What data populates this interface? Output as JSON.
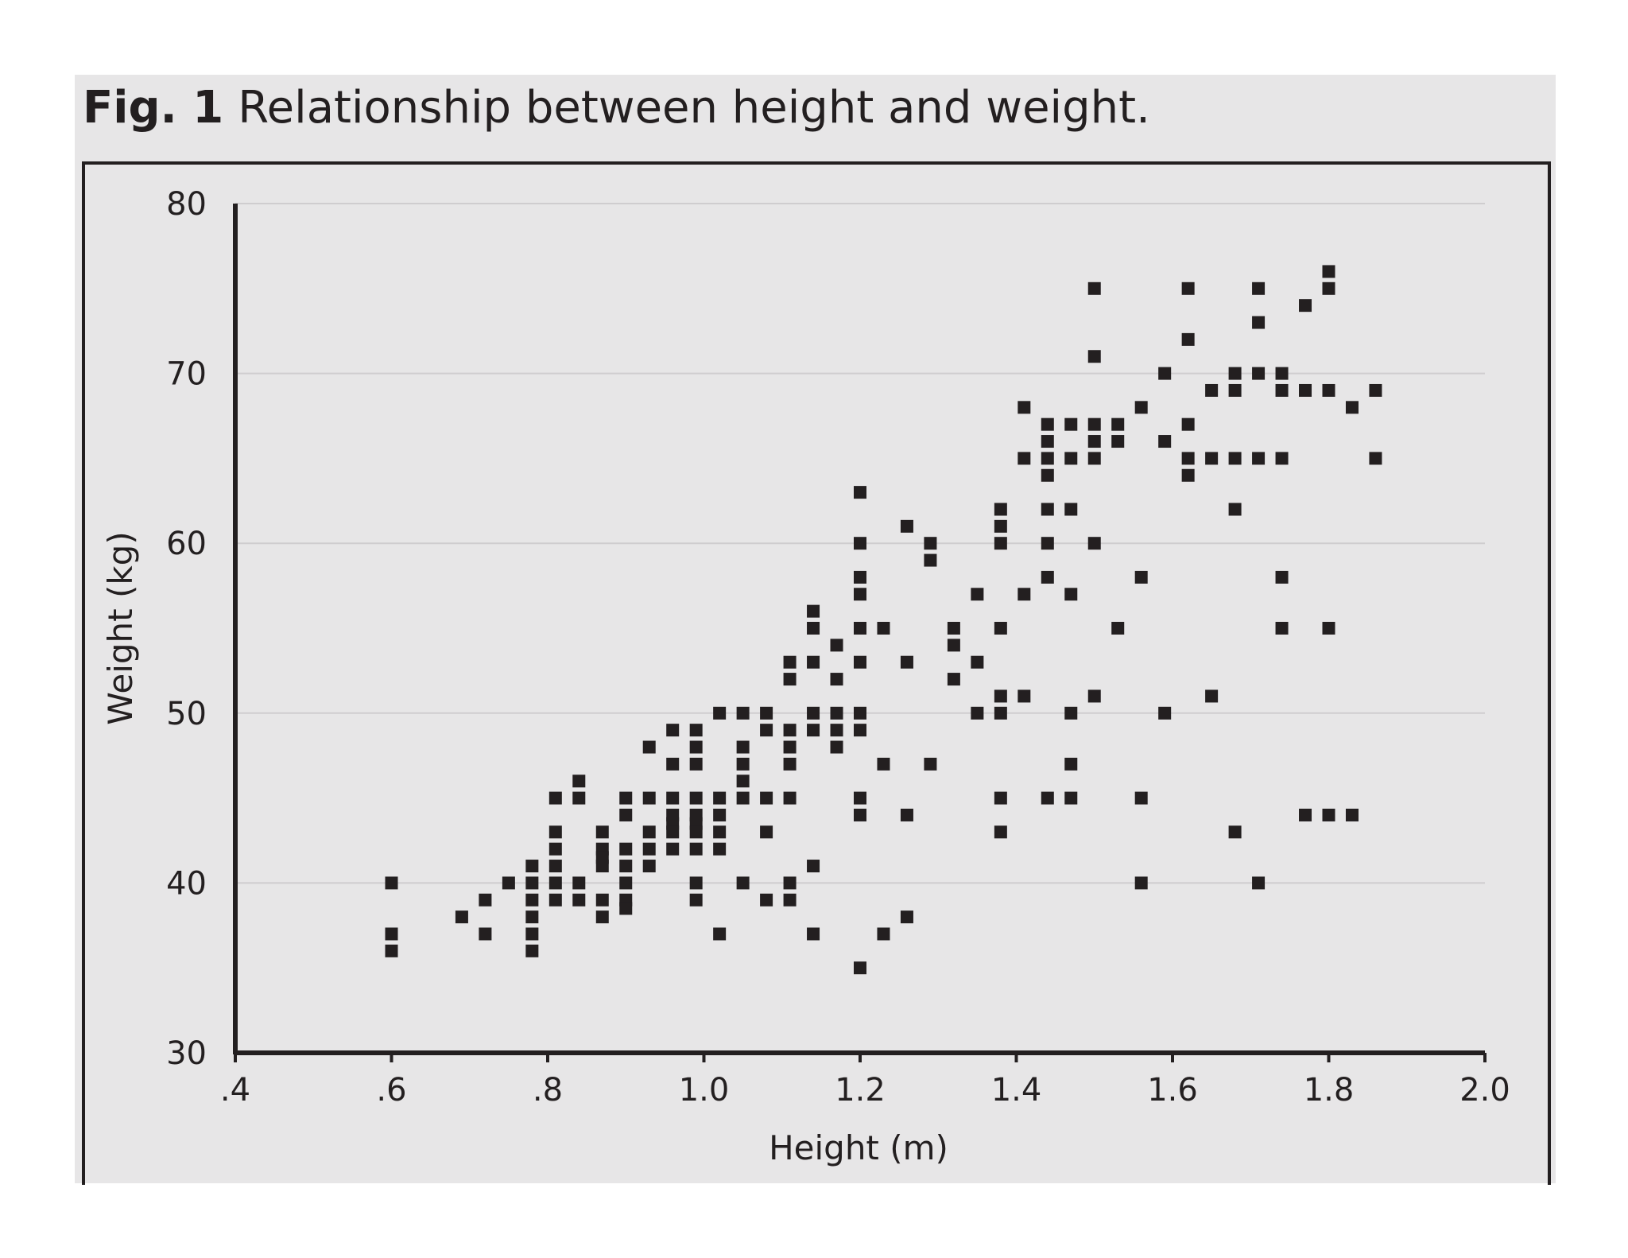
{
  "caption": {
    "label": "Fig. 1",
    "text": "Relationship between height and weight."
  },
  "colors": {
    "panel_bg": "#e7e6e7",
    "ink": "#231f20",
    "grid": "#cfcdcf"
  },
  "chart_data": {
    "type": "scatter",
    "title": "Relationship between height and weight.",
    "xlabel": "Height (m)",
    "ylabel": "Weight (kg)",
    "xlim": [
      0.4,
      2.0
    ],
    "ylim": [
      30,
      80
    ],
    "x_ticks": [
      0.4,
      0.6,
      0.8,
      1.0,
      1.2,
      1.4,
      1.6,
      1.8,
      2.0
    ],
    "x_tick_labels": [
      ".4",
      ".6",
      ".8",
      "1.0",
      "1.2",
      "1.4",
      "1.6",
      "1.8",
      "2.0"
    ],
    "y_ticks": [
      30,
      40,
      50,
      60,
      70,
      80
    ],
    "y_tick_labels": [
      "30",
      "40",
      "50",
      "60",
      "70",
      "80"
    ],
    "grid": "horizontal",
    "marker": "square",
    "points": [
      [
        0.6,
        40
      ],
      [
        0.6,
        37
      ],
      [
        0.6,
        36
      ],
      [
        0.69,
        38
      ],
      [
        0.72,
        39
      ],
      [
        0.72,
        37
      ],
      [
        0.75,
        40
      ],
      [
        0.78,
        41
      ],
      [
        0.78,
        40
      ],
      [
        0.78,
        39
      ],
      [
        0.78,
        38
      ],
      [
        0.78,
        37
      ],
      [
        0.78,
        36
      ],
      [
        0.81,
        45
      ],
      [
        0.81,
        43
      ],
      [
        0.81,
        42
      ],
      [
        0.81,
        41
      ],
      [
        0.81,
        40
      ],
      [
        0.81,
        39
      ],
      [
        0.84,
        46
      ],
      [
        0.84,
        45
      ],
      [
        0.84,
        40
      ],
      [
        0.84,
        39
      ],
      [
        0.87,
        43
      ],
      [
        0.87,
        42
      ],
      [
        0.87,
        41.5
      ],
      [
        0.87,
        41
      ],
      [
        0.87,
        39
      ],
      [
        0.87,
        38
      ],
      [
        0.9,
        45
      ],
      [
        0.9,
        44
      ],
      [
        0.9,
        42
      ],
      [
        0.9,
        41
      ],
      [
        0.9,
        40
      ],
      [
        0.9,
        39
      ],
      [
        0.9,
        38.5
      ],
      [
        0.93,
        48
      ],
      [
        0.93,
        45
      ],
      [
        0.93,
        43
      ],
      [
        0.93,
        42
      ],
      [
        0.93,
        41
      ],
      [
        0.96,
        49
      ],
      [
        0.96,
        47
      ],
      [
        0.96,
        45
      ],
      [
        0.96,
        44
      ],
      [
        0.96,
        43.5
      ],
      [
        0.96,
        43
      ],
      [
        0.96,
        42
      ],
      [
        0.99,
        49
      ],
      [
        0.99,
        48
      ],
      [
        0.99,
        47
      ],
      [
        0.99,
        45
      ],
      [
        0.99,
        44
      ],
      [
        0.99,
        43.5
      ],
      [
        0.99,
        43
      ],
      [
        0.99,
        42
      ],
      [
        0.99,
        40
      ],
      [
        0.99,
        39
      ],
      [
        1.02,
        50
      ],
      [
        1.02,
        45
      ],
      [
        1.02,
        44
      ],
      [
        1.02,
        43
      ],
      [
        1.02,
        42
      ],
      [
        1.02,
        37
      ],
      [
        1.05,
        50
      ],
      [
        1.05,
        48
      ],
      [
        1.05,
        47
      ],
      [
        1.05,
        46
      ],
      [
        1.05,
        45
      ],
      [
        1.05,
        40
      ],
      [
        1.08,
        50
      ],
      [
        1.08,
        49
      ],
      [
        1.08,
        45
      ],
      [
        1.08,
        43
      ],
      [
        1.08,
        39
      ],
      [
        1.11,
        53
      ],
      [
        1.11,
        52
      ],
      [
        1.11,
        49
      ],
      [
        1.11,
        48
      ],
      [
        1.11,
        47
      ],
      [
        1.11,
        45
      ],
      [
        1.11,
        40
      ],
      [
        1.11,
        39
      ],
      [
        1.14,
        56
      ],
      [
        1.14,
        55
      ],
      [
        1.14,
        53
      ],
      [
        1.14,
        50
      ],
      [
        1.14,
        49
      ],
      [
        1.14,
        41
      ],
      [
        1.14,
        37
      ],
      [
        1.17,
        54
      ],
      [
        1.17,
        52
      ],
      [
        1.17,
        50
      ],
      [
        1.17,
        49
      ],
      [
        1.17,
        48
      ],
      [
        1.2,
        63
      ],
      [
        1.2,
        60
      ],
      [
        1.2,
        58
      ],
      [
        1.2,
        57
      ],
      [
        1.2,
        55
      ],
      [
        1.2,
        53
      ],
      [
        1.2,
        50
      ],
      [
        1.2,
        49
      ],
      [
        1.2,
        45
      ],
      [
        1.2,
        44
      ],
      [
        1.2,
        35
      ],
      [
        1.23,
        55
      ],
      [
        1.23,
        47
      ],
      [
        1.23,
        37
      ],
      [
        1.26,
        61
      ],
      [
        1.26,
        53
      ],
      [
        1.26,
        44
      ],
      [
        1.26,
        38
      ],
      [
        1.29,
        60
      ],
      [
        1.29,
        59
      ],
      [
        1.29,
        47
      ],
      [
        1.32,
        55
      ],
      [
        1.32,
        54
      ],
      [
        1.32,
        52
      ],
      [
        1.35,
        57
      ],
      [
        1.35,
        53
      ],
      [
        1.35,
        50
      ],
      [
        1.38,
        62
      ],
      [
        1.38,
        61
      ],
      [
        1.38,
        60
      ],
      [
        1.38,
        55
      ],
      [
        1.38,
        51
      ],
      [
        1.38,
        50
      ],
      [
        1.38,
        45
      ],
      [
        1.38,
        43
      ],
      [
        1.41,
        68
      ],
      [
        1.41,
        65
      ],
      [
        1.41,
        57
      ],
      [
        1.41,
        51
      ],
      [
        1.44,
        67
      ],
      [
        1.44,
        66
      ],
      [
        1.44,
        65
      ],
      [
        1.44,
        64
      ],
      [
        1.44,
        62
      ],
      [
        1.44,
        60
      ],
      [
        1.44,
        58
      ],
      [
        1.44,
        45
      ],
      [
        1.47,
        67
      ],
      [
        1.47,
        65
      ],
      [
        1.47,
        62
      ],
      [
        1.47,
        57
      ],
      [
        1.47,
        50
      ],
      [
        1.47,
        47
      ],
      [
        1.47,
        45
      ],
      [
        1.5,
        75
      ],
      [
        1.5,
        71
      ],
      [
        1.5,
        67
      ],
      [
        1.5,
        66
      ],
      [
        1.5,
        65
      ],
      [
        1.5,
        60
      ],
      [
        1.5,
        51
      ],
      [
        1.53,
        67
      ],
      [
        1.53,
        66
      ],
      [
        1.53,
        55
      ],
      [
        1.56,
        68
      ],
      [
        1.56,
        58
      ],
      [
        1.56,
        45
      ],
      [
        1.56,
        40
      ],
      [
        1.59,
        70
      ],
      [
        1.59,
        66
      ],
      [
        1.59,
        50
      ],
      [
        1.62,
        75
      ],
      [
        1.62,
        72
      ],
      [
        1.62,
        67
      ],
      [
        1.62,
        65
      ],
      [
        1.62,
        64
      ],
      [
        1.65,
        69
      ],
      [
        1.65,
        65
      ],
      [
        1.65,
        51
      ],
      [
        1.68,
        70
      ],
      [
        1.68,
        69
      ],
      [
        1.68,
        65
      ],
      [
        1.68,
        62
      ],
      [
        1.68,
        43
      ],
      [
        1.71,
        75
      ],
      [
        1.71,
        73
      ],
      [
        1.71,
        70
      ],
      [
        1.71,
        65
      ],
      [
        1.71,
        40
      ],
      [
        1.74,
        70
      ],
      [
        1.74,
        69
      ],
      [
        1.74,
        65
      ],
      [
        1.74,
        58
      ],
      [
        1.74,
        55
      ],
      [
        1.77,
        74
      ],
      [
        1.77,
        69
      ],
      [
        1.77,
        44
      ],
      [
        1.8,
        76
      ],
      [
        1.8,
        75
      ],
      [
        1.8,
        69
      ],
      [
        1.8,
        55
      ],
      [
        1.8,
        44
      ],
      [
        1.83,
        68
      ],
      [
        1.83,
        44
      ],
      [
        1.86,
        69
      ],
      [
        1.86,
        65
      ]
    ]
  }
}
